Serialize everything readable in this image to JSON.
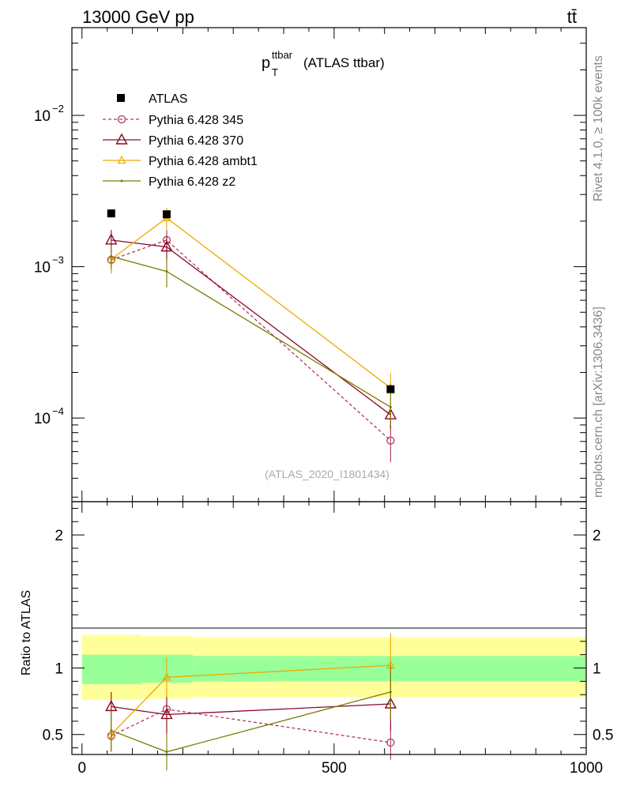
{
  "header": {
    "left": "13000 GeV pp",
    "right": "tt̄"
  },
  "side_text": {
    "top": "Rivet 4.1.0, ≥ 100k events",
    "bottom": "mcplots.cern.ch [arXiv:1306.3436]"
  },
  "chart_data": {
    "type": "line",
    "title_main": "p",
    "title_sup": "ttbar",
    "title_sub": "T",
    "title_rest": "(ATLAS ttbar)",
    "watermark": "(ATLAS_2020_I1801434)",
    "xlim": [
      -20,
      1000
    ],
    "x_ticks": [
      "0",
      "500",
      "1000"
    ],
    "x_tick_values": [
      0,
      500,
      1000
    ],
    "top_ylim": [
      2.8e-05,
      0.038
    ],
    "top_y_ticks": [
      {
        "value": 0.01,
        "base": "10",
        "exp": "−2"
      },
      {
        "value": 0.001,
        "base": "10",
        "exp": "−3"
      },
      {
        "value": 0.0001,
        "base": "10",
        "exp": "−4"
      }
    ],
    "ratio_ylabel": "Ratio to ATLAS",
    "ratio_ylim": [
      0.35,
      2.25
    ],
    "ratio_y_ticks": [
      "0.5",
      "1",
      "2"
    ],
    "ratio_y_tick_values": [
      0.5,
      1,
      2
    ],
    "data": {
      "name": "ATLAS",
      "x": [
        58,
        168,
        612
      ],
      "y": [
        0.00225,
        0.00222,
        0.000155
      ],
      "bands": [
        {
          "x0": 0,
          "x1": 118,
          "inner": [
            0.88,
            1.1
          ],
          "outer": [
            0.76,
            1.25
          ]
        },
        {
          "x0": 118,
          "x1": 220,
          "inner": [
            0.89,
            1.1
          ],
          "outer": [
            0.77,
            1.24
          ]
        },
        {
          "x0": 220,
          "x1": 1000,
          "inner": [
            0.9,
            1.09
          ],
          "outer": [
            0.78,
            1.23
          ]
        }
      ]
    },
    "series": [
      {
        "name": "Pythia 6.428 345",
        "color": "#b03a5a",
        "marker": "circle",
        "dash": true,
        "x": [
          58,
          168,
          612
        ],
        "y": [
          0.00111,
          0.0015,
          7.1e-05
        ],
        "yerr": [
          0.0002,
          0.00025,
          2e-05
        ],
        "ratio": [
          0.49,
          0.69,
          0.44
        ],
        "ratio_err": [
          0.12,
          0.16,
          0.13
        ]
      },
      {
        "name": "Pythia 6.428 370",
        "color": "#8b0a24",
        "marker": "triangle",
        "dash": false,
        "x": [
          58,
          168,
          612
        ],
        "y": [
          0.0015,
          0.00135,
          0.000105
        ],
        "yerr": [
          0.00025,
          0.00025,
          2e-05
        ],
        "ratio": [
          0.71,
          0.65,
          0.73
        ],
        "ratio_err": [
          0.11,
          0.14,
          0.2
        ]
      },
      {
        "name": "Pythia 6.428 ambt1",
        "color": "#f0a800",
        "marker": "triangle-small",
        "dash": false,
        "x": [
          58,
          168,
          612
        ],
        "y": [
          0.00112,
          0.0021,
          0.000158
        ],
        "yerr": [
          0.00022,
          0.00035,
          4e-05
        ],
        "ratio": [
          0.5,
          0.93,
          1.02
        ],
        "ratio_err": [
          0.12,
          0.15,
          0.24
        ]
      },
      {
        "name": "Pythia 6.428 z2",
        "color": "#7a7a00",
        "marker": "dot",
        "dash": false,
        "x": [
          58,
          168,
          612
        ],
        "y": [
          0.00117,
          0.00093,
          0.000118
        ],
        "yerr": [
          0.0002,
          0.0002,
          3e-05
        ],
        "ratio": [
          0.53,
          0.37,
          0.82
        ],
        "ratio_err": [
          0.15,
          0.14,
          0.2
        ]
      }
    ]
  }
}
